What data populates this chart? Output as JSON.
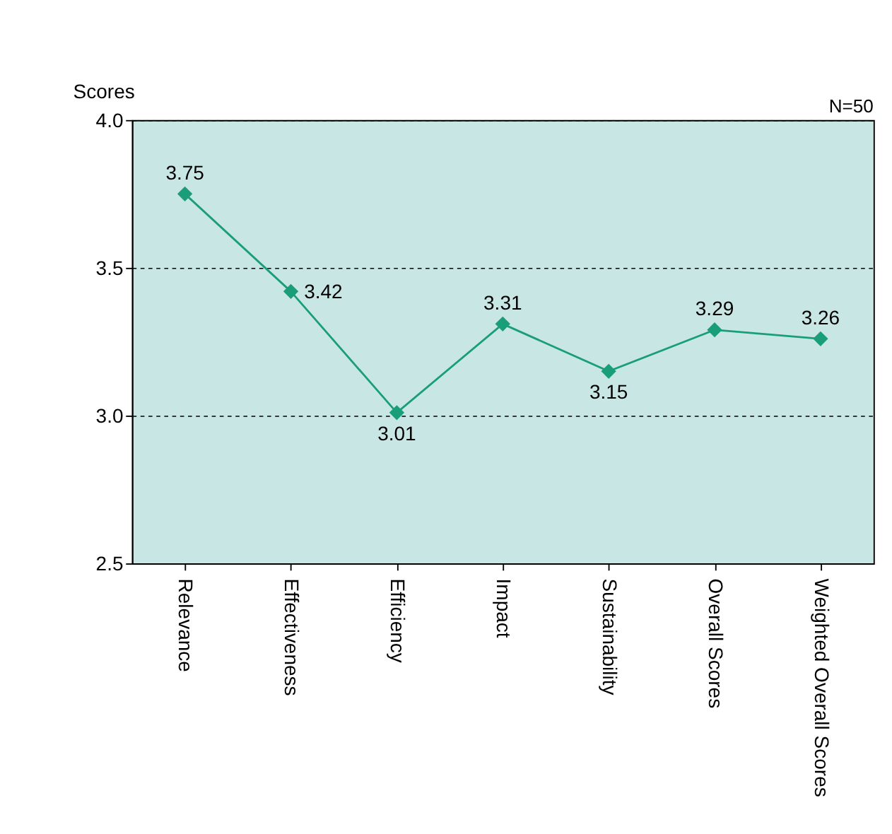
{
  "chart_data": {
    "type": "line",
    "ylabel": "Scores",
    "categories": [
      "Relevance",
      "Effectiveness",
      "Efficiency",
      "Impact",
      "Sustainability",
      "Overall Scores",
      "Weighted Overall Scores"
    ],
    "series": [
      {
        "color": "#1a9e7a",
        "values": [
          3.75,
          3.42,
          3.01,
          3.31,
          3.15,
          3.29,
          3.26
        ]
      }
    ],
    "ylim": [
      2.5,
      4.0
    ],
    "yticks": [
      {
        "value": 2.5,
        "label": "2.5"
      },
      {
        "value": 3.0,
        "label": "3.0"
      },
      {
        "value": 3.5,
        "label": "3.5"
      },
      {
        "value": 4.0,
        "label": "4.0"
      }
    ],
    "grid": "y",
    "marker": "diamond",
    "line_style": "solid",
    "data_labels": true,
    "annotations": [
      "N=50"
    ]
  }
}
